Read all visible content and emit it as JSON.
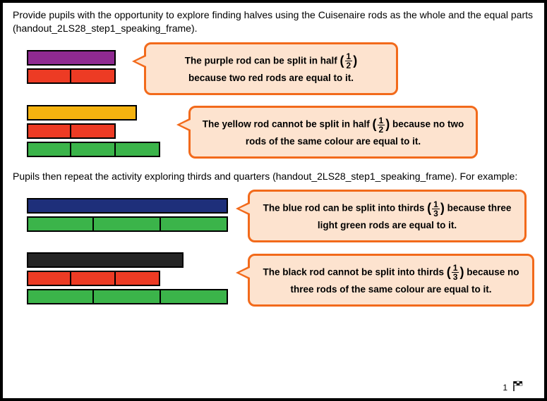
{
  "text": {
    "p1": "Provide pupils with the opportunity to explore finding halves using the Cuisenaire rods as the whole and the equal parts (handout_2LS28_step1_speaking_frame).",
    "p2": "Pupils then repeat the activity exploring thirds and quarters (handout_2LS28_step1_speaking_frame). For example:"
  },
  "callouts": {
    "c1_a": "The purple rod can be split in half ",
    "c1_b": " because two red rods are equal to it.",
    "c2_a": "The yellow rod cannot be split in half ",
    "c2_b": " because no two rods of the same colour are equal to it.",
    "c3_a": "The blue rod can be split into thirds ",
    "c3_b": " because three light green rods are equal to it.",
    "c4_a": "The black rod cannot be split into thirds ",
    "c4_b": " because no three rods of the same colour are equal to it."
  },
  "fractions": {
    "half_n": "1",
    "half_d": "2",
    "third_n": "1",
    "third_d": "3"
  },
  "rods": {
    "purple": {
      "color": "#8f2a91",
      "segments": 1,
      "segW": 126
    },
    "red2": {
      "color": "#ed3b24",
      "segments": 2,
      "segW": 63
    },
    "yellow": {
      "color": "#f5b20f",
      "segments": 1,
      "segW": 156
    },
    "red2b": {
      "color": "#ed3b24",
      "segments": 2,
      "segW": 63
    },
    "green3s": {
      "color": "#3bb44a",
      "segments": 3,
      "segW": 63
    },
    "blue": {
      "color": "#1e2f7a",
      "segments": 1,
      "segW": 285
    },
    "green3": {
      "color": "#3bb44a",
      "segments": 3,
      "segW": 95
    },
    "black": {
      "color": "#252525",
      "segments": 1,
      "segW": 222
    },
    "red3": {
      "color": "#ed3b24",
      "segments": 3,
      "segW": 63
    },
    "green3b": {
      "color": "#3bb44a",
      "segments": 3,
      "segW": 95
    }
  },
  "footer": {
    "page": "1"
  },
  "style": {
    "callout_bg": "#fde3cf",
    "callout_border": "#f26a1b"
  }
}
